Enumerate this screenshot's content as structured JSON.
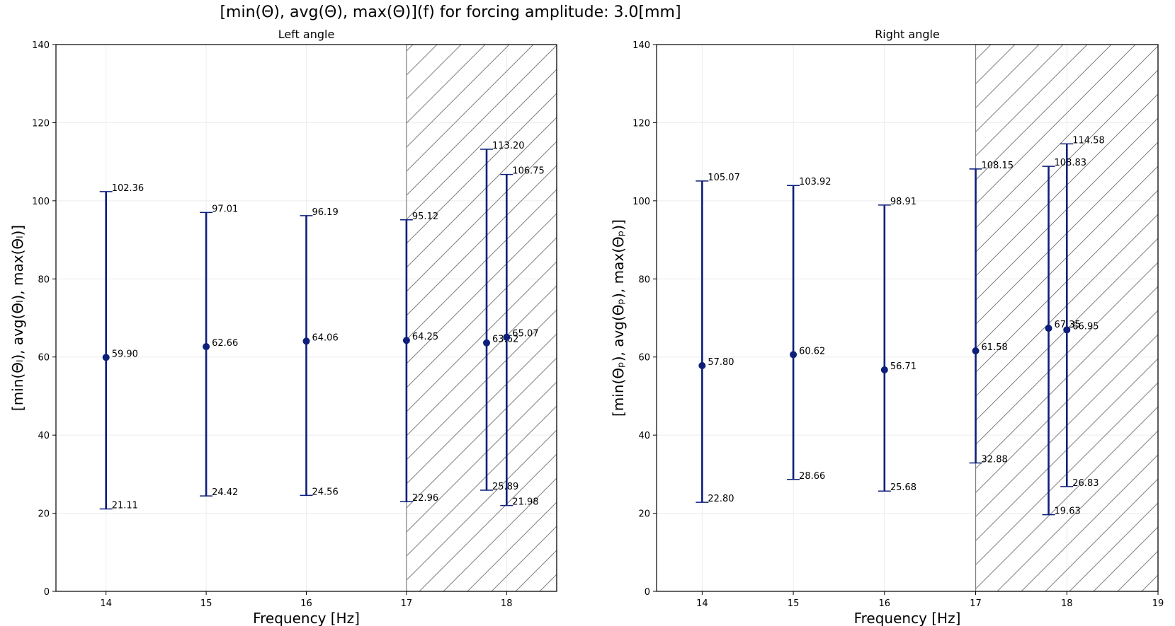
{
  "figure_title": "[min(Θ), avg(Θ), max(Θ)](f) for forcing amplitude: 3.0[mm]",
  "colors": {
    "series": "#0d1f7a",
    "hatch": "#7f7f7f",
    "grid": "#ececec",
    "axes": "#000000"
  },
  "chart_data": [
    {
      "type": "errorbar",
      "title": "Left angle",
      "xlabel": "Frequency [Hz]",
      "ylabel": "[min(Θₗ), avg(Θₗ), max(Θₗ)]",
      "xlim": [
        13.5,
        18.5
      ],
      "ylim": [
        0,
        140
      ],
      "xticks": [
        14,
        15,
        16,
        17,
        18
      ],
      "yticks": [
        0,
        20,
        40,
        60,
        80,
        100,
        120,
        140
      ],
      "grid": true,
      "hatched_region": [
        17,
        18.5
      ],
      "points": [
        {
          "x": 14.0,
          "min": 21.11,
          "avg": 59.9,
          "max": 102.36,
          "min_label": "21.11",
          "avg_label": "59.90",
          "max_label": "102.36"
        },
        {
          "x": 15.0,
          "min": 24.42,
          "avg": 62.66,
          "max": 97.01,
          "min_label": "24.42",
          "avg_label": "62.66",
          "max_label": "97.01"
        },
        {
          "x": 16.0,
          "min": 24.56,
          "avg": 64.06,
          "max": 96.19,
          "min_label": "24.56",
          "avg_label": "64.06",
          "max_label": "96.19"
        },
        {
          "x": 17.0,
          "min": 22.96,
          "avg": 64.25,
          "max": 95.12,
          "min_label": "22.96",
          "avg_label": "64.25",
          "max_label": "95.12"
        },
        {
          "x": 17.8,
          "min": 25.89,
          "avg": 63.62,
          "max": 113.2,
          "min_label": "25.89",
          "avg_label": "63.62",
          "max_label": "113.20"
        },
        {
          "x": 18.0,
          "min": 21.98,
          "avg": 65.07,
          "max": 106.75,
          "min_label": "21.98",
          "avg_label": "65.07",
          "max_label": "106.75"
        }
      ]
    },
    {
      "type": "errorbar",
      "title": "Right angle",
      "xlabel": "Frequency [Hz]",
      "ylabel": "[min(Θₚ), avg(Θₚ), max(Θₚ)]",
      "xlim": [
        13.5,
        19
      ],
      "ylim": [
        0,
        140
      ],
      "xticks": [
        14,
        15,
        16,
        17,
        18,
        19
      ],
      "yticks": [
        0,
        20,
        40,
        60,
        80,
        100,
        120,
        140
      ],
      "grid": true,
      "hatched_region": [
        17,
        19
      ],
      "points": [
        {
          "x": 14.0,
          "min": 22.8,
          "avg": 57.8,
          "max": 105.07,
          "min_label": "22.80",
          "avg_label": "57.80",
          "max_label": "105.07"
        },
        {
          "x": 15.0,
          "min": 28.66,
          "avg": 60.62,
          "max": 103.92,
          "min_label": "28.66",
          "avg_label": "60.62",
          "max_label": "103.92"
        },
        {
          "x": 16.0,
          "min": 25.68,
          "avg": 56.71,
          "max": 98.91,
          "min_label": "25.68",
          "avg_label": "56.71",
          "max_label": "98.91"
        },
        {
          "x": 17.0,
          "min": 32.88,
          "avg": 61.58,
          "max": 108.15,
          "min_label": "32.88",
          "avg_label": "61.58",
          "max_label": "108.15"
        },
        {
          "x": 17.8,
          "min": 19.63,
          "avg": 67.35,
          "max": 108.83,
          "min_label": "19.63",
          "avg_label": "67.35",
          "max_label": "108.83"
        },
        {
          "x": 18.0,
          "min": 26.83,
          "avg": 66.95,
          "max": 114.58,
          "min_label": "26.83",
          "avg_label": "66.95",
          "max_label": "114.58"
        }
      ]
    }
  ]
}
